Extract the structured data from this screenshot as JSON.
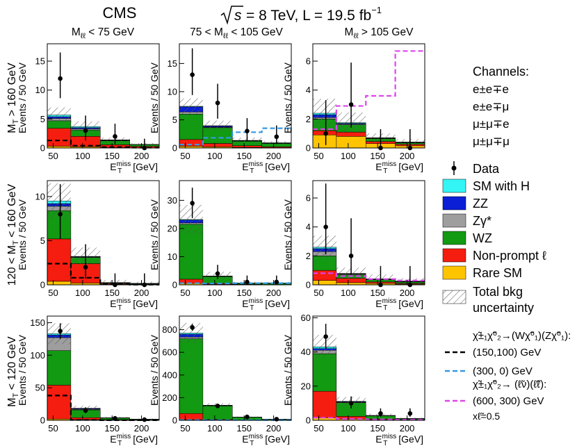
{
  "header": {
    "experiment": "CMS",
    "energy_sqrt": "s",
    "energy_rest": "= 8 TeV, L = 19.5 fb",
    "energy_sup": "−1"
  },
  "columns": [
    {
      "pre": "M",
      "sub": "ℓℓ",
      "post": " < 75 GeV"
    },
    {
      "pre": "75 < M",
      "sub": "ℓℓ",
      "post": " < 105 GeV"
    },
    {
      "pre": "M",
      "sub": "ℓℓ",
      "post": " > 105 GeV"
    }
  ],
  "rows": [
    {
      "pre": "M",
      "sub": "T",
      "post": " > 160 GeV"
    },
    {
      "pre": "120 < M",
      "sub": "T",
      "post": " < 160 GeV"
    },
    {
      "pre": "M",
      "sub": "T",
      "post": " < 120 GeV"
    }
  ],
  "y_axis_label": "Events / 50 GeV",
  "x_axis_label": {
    "base": "E",
    "sup": "miss",
    "sub": "T",
    "unit": " [GeV]"
  },
  "channels": {
    "title": "Channels:",
    "items": [
      "e±e∓e",
      "e±e∓μ",
      "μ±μ∓e",
      "μ±μ∓μ"
    ]
  },
  "legend": {
    "data": "Data",
    "sm_with_h": "SM with H",
    "zz": "ZZ",
    "zgamma": "Zγ*",
    "wz": "WZ",
    "nonprompt": "Non-prompt ℓ",
    "rare": "Rare SM",
    "unc_line1": "Total bkg",
    "unc_line2": "uncertainty",
    "sig1_header": "χ̃±₁χ̃⁰₂→(Wχ̃⁰₁)(Zχ̃⁰₁):",
    "sig1": "(150,100) GeV",
    "sig2": "(300, 0) GeV",
    "sig3_header": "χ̃±₁χ̃⁰₂→ (ℓ̃ν)(ℓ̃ℓ):",
    "sig3": "(600, 300) GeV",
    "sig3_note": "xℓ̃=0.5"
  },
  "colors": {
    "sm_with_h": "#33f5f5",
    "zz": "#0a1fd6",
    "zgamma": "#9e9e9e",
    "wz": "#129a12",
    "nonprompt": "#f51d0f",
    "rare": "#ffc400",
    "sig1": "#000000",
    "sig2": "#3399e6",
    "sig3": "#dd44ee"
  },
  "chart_data": {
    "type": "bar",
    "stacked": true,
    "x_bins": [
      [
        40,
        80
      ],
      [
        80,
        130
      ],
      [
        130,
        180
      ],
      [
        180,
        230
      ]
    ],
    "x_range": [
      40,
      230
    ],
    "x_ticks": [
      50,
      100,
      150,
      200
    ],
    "stack_order": [
      "rare",
      "nonprompt",
      "wz",
      "zgamma",
      "zz",
      "sm_with_h"
    ],
    "panels": [
      {
        "id": "mt_gt160_mll_lt75",
        "row": 0,
        "col": 0,
        "ylim": [
          0,
          18
        ],
        "yticks": [
          0,
          5,
          10,
          15
        ],
        "stack": {
          "rare": [
            0.3,
            0.2,
            0.05,
            0.02
          ],
          "nonprompt": [
            3.1,
            1.8,
            0.5,
            0.25
          ],
          "wz": [
            1.3,
            1.1,
            0.7,
            0.3
          ],
          "zgamma": [
            0.4,
            0.2,
            0.05,
            0.02
          ],
          "zz": [
            0.3,
            0.2,
            0.05,
            0.02
          ],
          "sm_with_h": [
            0.3,
            0.2,
            0.05,
            0.02
          ]
        },
        "unc_total": [
          1.3,
          0.9,
          0.4,
          0.2
        ],
        "data": {
          "x": [
            62,
            105,
            155,
            205
          ],
          "y": [
            12,
            3,
            2,
            0
          ],
          "err_up": [
            4.5,
            2.6,
            2.2,
            1.6
          ],
          "err_dn": [
            3.4,
            1.7,
            1.3,
            0
          ]
        },
        "signals": [
          {
            "name": "sig1",
            "values": [
              1.3,
              0.4,
              0.15,
              0.05
            ]
          }
        ]
      },
      {
        "id": "mt_gt160_mll_75_105",
        "row": 0,
        "col": 1,
        "ylim": [
          0,
          18.5
        ],
        "yticks": [
          0,
          5,
          10,
          15
        ],
        "stack": {
          "rare": [
            0.3,
            0.2,
            0.1,
            0.05
          ],
          "nonprompt": [
            1.2,
            0.6,
            0.3,
            0.15
          ],
          "wz": [
            4.5,
            2.8,
            0.8,
            0.6
          ],
          "zgamma": [
            0.4,
            0.1,
            0.05,
            0.05
          ],
          "zz": [
            0.9,
            0.2,
            0.05,
            0.05
          ],
          "sm_with_h": [
            0.1,
            0.05,
            0.05,
            0.02
          ]
        },
        "unc_total": [
          1.4,
          0.9,
          0.5,
          0.3
        ],
        "data": {
          "x": [
            62,
            105,
            155,
            205
          ],
          "y": [
            13,
            8,
            3,
            2
          ],
          "err_up": [
            4.7,
            3.4,
            2.3,
            2.0
          ],
          "err_dn": [
            3.6,
            2.8,
            1.7,
            1.3
          ]
        },
        "signals": [
          {
            "name": "sig2",
            "values": [
              0.6,
              1.8,
              2.8,
              3.5
            ]
          }
        ]
      },
      {
        "id": "mt_gt160_mll_gt105",
        "row": 0,
        "col": 2,
        "ylim": [
          0,
          7.2
        ],
        "yticks": [
          0,
          2,
          4,
          6
        ],
        "stack": {
          "rare": [
            0.9,
            0.8,
            0.3,
            0.15
          ],
          "nonprompt": [
            0.3,
            0.3,
            0.15,
            0.1
          ],
          "wz": [
            0.8,
            0.5,
            0.2,
            0.1
          ],
          "zgamma": [
            0.1,
            0.05,
            0.02,
            0.02
          ],
          "zz": [
            0.2,
            0.05,
            0.02,
            0.02
          ],
          "sm_with_h": [
            0.1,
            0.05,
            0.02,
            0.02
          ]
        },
        "unc_total": [
          1.0,
          0.7,
          0.3,
          0.2
        ],
        "data": {
          "x": [
            62,
            105,
            155,
            205
          ],
          "y": [
            1,
            3,
            0,
            0
          ],
          "err_up": [
            2.3,
            2.9,
            1.3,
            1.3
          ],
          "err_dn": [
            0.8,
            1.6,
            0,
            0
          ]
        },
        "signals": [
          {
            "name": "sig3",
            "values": [
              1.3,
              2.9,
              3.6,
              6.7
            ]
          }
        ]
      },
      {
        "id": "mt_120_160_mll_lt75",
        "row": 1,
        "col": 0,
        "ylim": [
          0,
          11.8
        ],
        "yticks": [
          0,
          5,
          10
        ],
        "stack": {
          "rare": [
            0.4,
            0.2,
            0.05,
            0.02
          ],
          "nonprompt": [
            4.8,
            2.2,
            0.1,
            0.05
          ],
          "wz": [
            3.2,
            0.7,
            0.05,
            0.05
          ],
          "zgamma": [
            0.5,
            0.05,
            0.02,
            0.02
          ],
          "zz": [
            0.3,
            0.05,
            0.02,
            0.02
          ],
          "sm_with_h": [
            0.3,
            0.02,
            0.02,
            0.01
          ]
        },
        "unc_total": [
          2.0,
          1.0,
          0.3,
          0.2
        ],
        "data": {
          "x": [
            62,
            105,
            155,
            205
          ],
          "y": [
            8,
            2,
            0,
            0
          ],
          "err_up": [
            3.4,
            2.6,
            1.3,
            1.3
          ],
          "err_dn": [
            2.8,
            1.3,
            0,
            0
          ]
        },
        "signals": [
          {
            "name": "sig1",
            "values": [
              2.4,
              0.8,
              0.05,
              0.02
            ]
          }
        ]
      },
      {
        "id": "mt_120_160_mll_75_105",
        "row": 1,
        "col": 1,
        "ylim": [
          0,
          37
        ],
        "yticks": [
          0,
          10,
          20,
          30
        ],
        "stack": {
          "rare": [
            0.5,
            0.2,
            0.1,
            0.05
          ],
          "nonprompt": [
            1.5,
            0.3,
            0.1,
            0.05
          ],
          "wz": [
            19.5,
            2.4,
            0.3,
            0.4
          ],
          "zgamma": [
            0.5,
            0.1,
            0.05,
            0.05
          ],
          "zz": [
            1.0,
            0.1,
            0.05,
            0.05
          ],
          "sm_with_h": [
            0.2,
            0.05,
            0.02,
            0.02
          ]
        },
        "unc_total": [
          5.2,
          1.5,
          0.5,
          0.4
        ],
        "data": {
          "x": [
            62,
            105,
            155,
            205
          ],
          "y": [
            29,
            4,
            1,
            1
          ],
          "err_up": [
            5.5,
            3.1,
            2.3,
            2.3
          ],
          "err_dn": [
            5.3,
            1.9,
            0.8,
            0.8
          ]
        },
        "signals": [
          {
            "name": "sig2",
            "values": [
              0.6,
              0.5,
              0.6,
              0.6
            ]
          }
        ]
      },
      {
        "id": "mt_120_160_mll_gt105",
        "row": 1,
        "col": 2,
        "ylim": [
          0,
          7.2
        ],
        "yticks": [
          0,
          2,
          4,
          6
        ],
        "stack": {
          "rare": [
            0.3,
            0.15,
            0.1,
            0.05
          ],
          "nonprompt": [
            0.7,
            0.3,
            0.1,
            0.05
          ],
          "wz": [
            1.0,
            0.25,
            0.15,
            0.1
          ],
          "zgamma": [
            0.3,
            0.05,
            0.02,
            0.02
          ],
          "zz": [
            0.2,
            0.02,
            0.02,
            0.02
          ],
          "sm_with_h": [
            0.1,
            0.02,
            0.02,
            0.02
          ]
        },
        "unc_total": [
          0.8,
          0.4,
          0.3,
          0.2
        ],
        "data": {
          "x": [
            62,
            105,
            155,
            205
          ],
          "y": [
            4,
            2,
            0,
            0
          ],
          "err_up": [
            3.0,
            2.6,
            1.3,
            1.3
          ],
          "err_dn": [
            1.9,
            1.3,
            0,
            0
          ]
        },
        "signals": [
          {
            "name": "sig3",
            "values": [
              0.8,
              0.6,
              0.4,
              0.3
            ]
          }
        ]
      },
      {
        "id": "mt_lt120_mll_lt75",
        "row": 2,
        "col": 0,
        "ylim": [
          0,
          160
        ],
        "yticks": [
          0,
          50,
          100,
          150
        ],
        "stack": {
          "rare": [
            2,
            1,
            0.3,
            0.2
          ],
          "nonprompt": [
            52,
            3,
            0.7,
            0.3
          ],
          "wz": [
            53,
            12,
            2.5,
            1.0
          ],
          "zgamma": [
            20,
            1,
            0.2,
            0.1
          ],
          "zz": [
            4,
            1,
            0.2,
            0.1
          ],
          "sm_with_h": [
            2,
            0.5,
            0.1,
            0.05
          ]
        },
        "unc_total": [
          16,
          4,
          1.5,
          1
        ],
        "data": {
          "x": [
            62,
            105,
            155,
            205
          ],
          "y": [
            137,
            15,
            3,
            1
          ],
          "err_up": [
            12,
            5,
            3,
            2.3
          ],
          "err_dn": [
            12,
            4,
            1.7,
            0.8
          ]
        },
        "signals": [
          {
            "name": "sig1",
            "values": [
              38,
              0.5,
              0.1,
              0.05
            ]
          }
        ]
      },
      {
        "id": "mt_lt120_mll_75_105",
        "row": 2,
        "col": 1,
        "ylim": [
          0,
          920
        ],
        "yticks": [
          0,
          200,
          400,
          600,
          800
        ],
        "stack": {
          "rare": [
            5,
            2,
            1,
            0.5
          ],
          "nonprompt": [
            55,
            5,
            1,
            0.5
          ],
          "wz": [
            660,
            120,
            25,
            8
          ],
          "zgamma": [
            15,
            2,
            0.5,
            0.3
          ],
          "zz": [
            25,
            3,
            0.5,
            0.2
          ],
          "sm_with_h": [
            10,
            1,
            0.2,
            0.1
          ]
        },
        "unc_total": [
          90,
          18,
          6,
          3
        ],
        "data": {
          "x": [
            62,
            105,
            155,
            205
          ],
          "y": [
            820,
            127,
            30,
            10
          ],
          "err_up": [
            29,
            12,
            6,
            4
          ],
          "err_dn": [
            29,
            11,
            5,
            3
          ]
        },
        "signals": [
          {
            "name": "sig2",
            "values": [
              3,
              2,
              2,
              1.5
            ]
          }
        ]
      },
      {
        "id": "mt_lt120_mll_gt105",
        "row": 2,
        "col": 2,
        "ylim": [
          0,
          61
        ],
        "yticks": [
          0,
          20,
          40,
          60
        ],
        "stack": {
          "rare": [
            1.5,
            0.8,
            0.3,
            0.2
          ],
          "nonprompt": [
            15.5,
            1.5,
            0.5,
            0.2
          ],
          "wz": [
            22,
            8,
            1.8,
            0.6
          ],
          "zgamma": [
            2,
            0.3,
            0.1,
            0.05
          ],
          "zz": [
            1,
            0.3,
            0.1,
            0.05
          ],
          "sm_with_h": [
            1,
            0.2,
            0.05,
            0.02
          ]
        },
        "unc_total": [
          7,
          2.5,
          1,
          0.5
        ],
        "data": {
          "x": [
            62,
            105,
            155,
            205
          ],
          "y": [
            49,
            10,
            4,
            4
          ],
          "err_up": [
            7.5,
            4,
            3,
            3
          ],
          "err_dn": [
            7,
            3,
            1.9,
            1.9
          ]
        },
        "signals": [
          {
            "name": "sig3",
            "values": [
              1.5,
              0.8,
              0.5,
              0.3
            ]
          }
        ]
      }
    ]
  }
}
